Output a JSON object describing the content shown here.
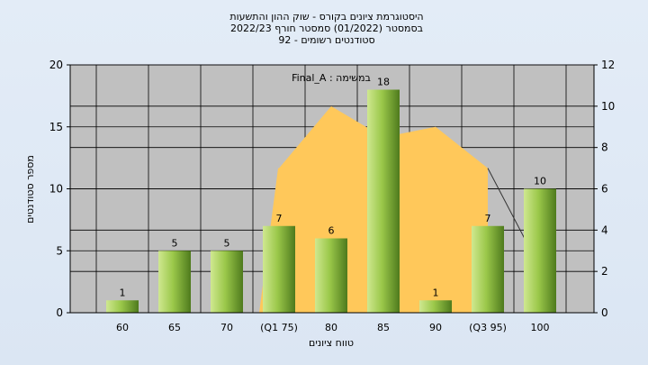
{
  "chart_data": {
    "type": "bar",
    "title_lines": [
      "היסטוגרמת ציונים בקורס - שוק ההון והתשעות",
      "בסמסטר  (01/2022)  סמסטר חורף 2022/23",
      "סטודנטים רשומים - 92"
    ],
    "categories": [
      "60",
      "65",
      "70",
      "(Q1 75)",
      "80",
      "85",
      "90",
      "(Q3 95)",
      "100"
    ],
    "values": [
      1,
      5,
      5,
      7,
      6,
      18,
      1,
      7,
      10
    ],
    "xlabel": "טווח ציונים",
    "ylabel": "מספר סטודנטים",
    "ylim": [
      0,
      20
    ],
    "yticks": [
      0,
      5,
      10,
      15,
      20
    ],
    "y2lim": [
      0,
      12
    ],
    "y2ticks": [
      0,
      2,
      4,
      6,
      8,
      10,
      12
    ],
    "annotation": "Final_A : במשימה",
    "grid": true,
    "background_series": {
      "type": "area",
      "axis": "right",
      "x_positions": [
        3,
        4,
        5,
        6,
        7
      ],
      "values": [
        7,
        10,
        8.5,
        9,
        7
      ]
    },
    "colors": {
      "plot_bg": "#c0c0c0",
      "area_fill": "#ffc85a",
      "bar_light": "#cfe890",
      "bar_mid": "#9bc84a",
      "bar_dark": "#4e7a1d"
    }
  }
}
